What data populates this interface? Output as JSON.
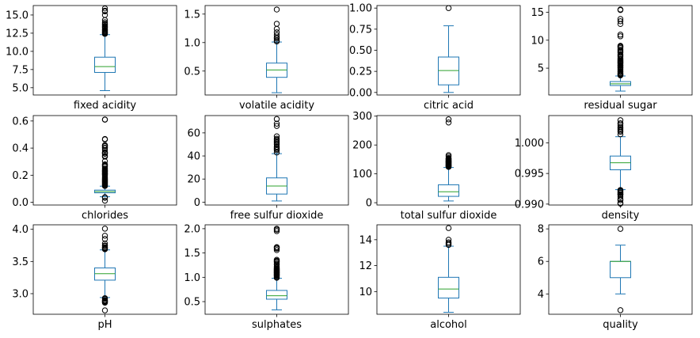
{
  "style": {
    "box_color": "#1f77b4",
    "median_color": "#2ca02c",
    "flier_edge_color": "#000000",
    "axes_color": "#000000",
    "background": "#ffffff"
  },
  "chart_data": [
    {
      "type": "box",
      "label": "fixed acidity",
      "ylim": [
        4.0,
        16.3
      ],
      "yticks": [
        5,
        7.5,
        10,
        12.5,
        15
      ],
      "ytick_labels": [
        "5.0",
        "7.5",
        "10.0",
        "12.5",
        "15.0"
      ],
      "whisker_low": 4.6,
      "q1": 7.1,
      "median": 7.9,
      "q3": 9.2,
      "whisker_high": 12.3,
      "fliers": [
        12.4,
        12.5,
        12.6,
        12.7,
        12.8,
        12.9,
        13.0,
        13.2,
        13.3,
        13.4,
        13.5,
        13.7,
        13.8,
        14.0,
        14.3,
        15.0,
        15.5,
        15.6,
        15.9
      ]
    },
    {
      "type": "box",
      "label": "volatile acidity",
      "ylim": [
        0.08,
        1.65
      ],
      "yticks": [
        0.5,
        1.0,
        1.5
      ],
      "ytick_labels": [
        "0.5",
        "1.0",
        "1.5"
      ],
      "whisker_low": 0.12,
      "q1": 0.39,
      "median": 0.52,
      "q3": 0.64,
      "whisker_high": 1.01,
      "fliers": [
        1.02,
        1.04,
        1.07,
        1.09,
        1.13,
        1.18,
        1.24,
        1.33,
        1.58
      ]
    },
    {
      "type": "box",
      "label": "citric acid",
      "ylim": [
        -0.03,
        1.03
      ],
      "yticks": [
        0.0,
        0.25,
        0.5,
        0.75,
        1.0
      ],
      "ytick_labels": [
        "0.00",
        "0.25",
        "0.50",
        "0.75",
        "1.00"
      ],
      "whisker_low": 0.0,
      "q1": 0.09,
      "median": 0.26,
      "q3": 0.42,
      "whisker_high": 0.79,
      "fliers": [
        1.0
      ]
    },
    {
      "type": "box",
      "label": "residual sugar",
      "ylim": [
        0.2,
        16.2
      ],
      "yticks": [
        5,
        10,
        15
      ],
      "ytick_labels": [
        "5",
        "10",
        "15"
      ],
      "whisker_low": 0.9,
      "q1": 1.9,
      "median": 2.2,
      "q3": 2.6,
      "whisker_high": 3.6,
      "fliers": [
        3.7,
        3.8,
        3.9,
        4.0,
        4.1,
        4.3,
        4.4,
        4.6,
        4.8,
        5.0,
        5.1,
        5.2,
        5.4,
        5.5,
        5.6,
        5.8,
        5.9,
        6.0,
        6.1,
        6.2,
        6.3,
        6.4,
        6.6,
        6.7,
        7.0,
        7.2,
        7.3,
        7.5,
        7.8,
        7.9,
        8.1,
        8.3,
        8.6,
        8.8,
        8.9,
        9.0,
        10.7,
        11.0,
        12.9,
        13.4,
        13.8,
        15.4,
        15.5
      ]
    },
    {
      "type": "box",
      "label": "chlorides",
      "ylim": [
        -0.02,
        0.64
      ],
      "yticks": [
        0.0,
        0.2,
        0.4,
        0.6
      ],
      "ytick_labels": [
        "0.0",
        "0.2",
        "0.4",
        "0.6"
      ],
      "whisker_low": 0.041,
      "q1": 0.07,
      "median": 0.079,
      "q3": 0.09,
      "whisker_high": 0.119,
      "fliers": [
        0.012,
        0.034,
        0.038,
        0.12,
        0.125,
        0.13,
        0.135,
        0.14,
        0.145,
        0.15,
        0.155,
        0.16,
        0.165,
        0.17,
        0.175,
        0.18,
        0.19,
        0.2,
        0.205,
        0.21,
        0.213,
        0.216,
        0.222,
        0.226,
        0.23,
        0.235,
        0.241,
        0.25,
        0.263,
        0.27,
        0.276,
        0.28,
        0.303,
        0.337,
        0.343,
        0.358,
        0.36,
        0.368,
        0.369,
        0.387,
        0.401,
        0.403,
        0.414,
        0.415,
        0.422,
        0.464,
        0.467,
        0.61,
        0.611
      ]
    },
    {
      "type": "box",
      "label": "free sulfur dioxide",
      "ylim": [
        -2.5,
        75
      ],
      "yticks": [
        0,
        20,
        40,
        60
      ],
      "ytick_labels": [
        "0",
        "20",
        "40",
        "60"
      ],
      "whisker_low": 1,
      "q1": 7,
      "median": 14,
      "q3": 21,
      "whisker_high": 42,
      "fliers": [
        43,
        45,
        46,
        47,
        48,
        50,
        51,
        52,
        53,
        54,
        55,
        57,
        66,
        68,
        72
      ]
    },
    {
      "type": "box",
      "label": "total sulfur dioxide",
      "ylim": [
        -8,
        302
      ],
      "yticks": [
        0,
        100,
        200,
        300
      ],
      "ytick_labels": [
        "0",
        "100",
        "200",
        "300"
      ],
      "whisker_low": 6,
      "q1": 22,
      "median": 38,
      "q3": 62,
      "whisker_high": 122,
      "fliers": [
        124,
        125,
        126,
        127,
        128,
        129,
        130,
        131,
        133,
        134,
        135,
        136,
        138,
        139,
        140,
        141,
        142,
        143,
        144,
        145,
        147,
        148,
        149,
        151,
        152,
        153,
        155,
        160,
        165,
        278,
        289
      ]
    },
    {
      "type": "box",
      "label": "density",
      "ylim": [
        0.98985,
        1.00445
      ],
      "yticks": [
        0.99,
        0.995,
        1.0
      ],
      "ytick_labels": [
        "0.990",
        "0.995",
        "1.000"
      ],
      "whisker_low": 0.99236,
      "q1": 0.9956,
      "median": 0.99675,
      "q3": 0.99784,
      "whisker_high": 1.001,
      "fliers": [
        0.99007,
        0.9902,
        0.99064,
        0.99084,
        0.9912,
        0.9915,
        0.99157,
        0.99162,
        0.99182,
        0.99191,
        0.9921,
        0.9922,
        0.9923,
        1.0014,
        1.0018,
        1.002,
        1.0022,
        1.0024,
        1.0026,
        1.00289,
        1.00315,
        1.0032,
        1.00369
      ]
    },
    {
      "type": "box",
      "label": "pH",
      "ylim": [
        2.68,
        4.07
      ],
      "yticks": [
        3.0,
        3.5,
        4.0
      ],
      "ytick_labels": [
        "3.0",
        "3.5",
        "4.0"
      ],
      "whisker_low": 2.94,
      "q1": 3.21,
      "median": 3.31,
      "q3": 3.4,
      "whisker_high": 3.68,
      "fliers": [
        2.74,
        2.86,
        2.87,
        2.88,
        2.89,
        2.9,
        2.92,
        2.93,
        3.69,
        3.7,
        3.71,
        3.72,
        3.74,
        3.75,
        3.78,
        3.85,
        3.9,
        4.01
      ]
    },
    {
      "type": "box",
      "label": "sulphates",
      "ylim": [
        0.24,
        2.08
      ],
      "yticks": [
        0.5,
        1.0,
        1.5,
        2.0
      ],
      "ytick_labels": [
        "0.5",
        "1.0",
        "1.5",
        "2.0"
      ],
      "whisker_low": 0.33,
      "q1": 0.55,
      "median": 0.62,
      "q3": 0.73,
      "whisker_high": 0.98,
      "fliers": [
        0.99,
        1.0,
        1.02,
        1.03,
        1.04,
        1.05,
        1.06,
        1.07,
        1.08,
        1.09,
        1.1,
        1.11,
        1.12,
        1.13,
        1.14,
        1.15,
        1.16,
        1.17,
        1.18,
        1.2,
        1.22,
        1.26,
        1.28,
        1.31,
        1.33,
        1.34,
        1.36,
        1.56,
        1.59,
        1.61,
        1.62,
        1.95,
        1.98,
        2.0
      ]
    },
    {
      "type": "box",
      "label": "alcohol",
      "ylim": [
        8.25,
        15.15
      ],
      "yticks": [
        10,
        12,
        14
      ],
      "ytick_labels": [
        "10",
        "12",
        "14"
      ],
      "whisker_low": 8.4,
      "q1": 9.5,
      "median": 10.2,
      "q3": 11.1,
      "whisker_high": 13.5,
      "fliers": [
        13.6,
        13.7,
        13.8,
        14.0,
        14.9
      ]
    },
    {
      "type": "box",
      "label": "quality",
      "ylim": [
        2.75,
        8.25
      ],
      "yticks": [
        4,
        6,
        8
      ],
      "ytick_labels": [
        "4",
        "6",
        "8"
      ],
      "whisker_low": 4,
      "q1": 5,
      "median": 6,
      "q3": 6,
      "whisker_high": 7,
      "fliers": [
        3,
        8
      ]
    }
  ]
}
